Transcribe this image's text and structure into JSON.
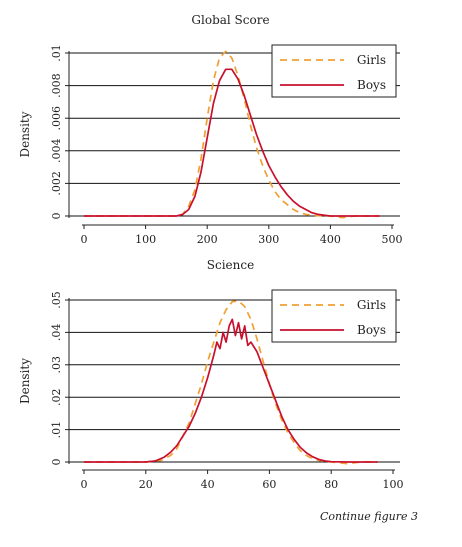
{
  "chart_data": [
    {
      "type": "line",
      "title": "Global Score",
      "xlabel": "",
      "ylabel": "Density",
      "xlim": [
        0,
        500
      ],
      "ylim": [
        0,
        0.01
      ],
      "xticks": [
        0,
        100,
        200,
        300,
        400,
        500
      ],
      "xtick_labels": [
        "0",
        "100",
        "200",
        "300",
        "400",
        "500"
      ],
      "yticks": [
        0,
        0.002,
        0.004,
        0.006,
        0.008,
        0.01
      ],
      "ytick_labels": [
        "0",
        ".002",
        ".004",
        ".006",
        ".008",
        ".01"
      ],
      "grid": "horizontal",
      "legend": "top-right",
      "series": [
        {
          "name": "Girls",
          "style": "dashed",
          "color": "#f0a033",
          "x": [
            0,
            150,
            160,
            170,
            180,
            190,
            200,
            210,
            220,
            230,
            240,
            250,
            260,
            270,
            280,
            290,
            300,
            310,
            320,
            330,
            340,
            350,
            360,
            370,
            380,
            390,
            400,
            420,
            440,
            460,
            480
          ],
          "y": [
            0,
            0,
            0.0001,
            0.0006,
            0.0016,
            0.0035,
            0.006,
            0.0083,
            0.0097,
            0.0101,
            0.0097,
            0.0086,
            0.0072,
            0.0056,
            0.0042,
            0.0031,
            0.0022,
            0.0015,
            0.001,
            0.0007,
            0.0004,
            0.0002,
            0.0001,
            5e-05,
            2e-05,
            0,
            0,
            -0.0001,
            0,
            0,
            0
          ]
        },
        {
          "name": "Boys",
          "style": "solid",
          "color": "#c8102e",
          "x": [
            0,
            150,
            160,
            170,
            180,
            190,
            200,
            210,
            220,
            230,
            240,
            250,
            260,
            270,
            280,
            290,
            300,
            310,
            320,
            330,
            340,
            350,
            360,
            370,
            380,
            390,
            400,
            420,
            440,
            460,
            480
          ],
          "y": [
            0,
            0,
            0.0001,
            0.0004,
            0.0012,
            0.0027,
            0.0048,
            0.0069,
            0.0083,
            0.009,
            0.009,
            0.0084,
            0.0074,
            0.0062,
            0.005,
            0.004,
            0.0031,
            0.0024,
            0.0018,
            0.0013,
            0.0009,
            0.0006,
            0.0004,
            0.0002,
            0.0001,
            5e-05,
            0,
            0,
            0,
            0,
            0
          ]
        }
      ]
    },
    {
      "type": "line",
      "title": "Science",
      "xlabel": "",
      "ylabel": "Density",
      "xlim": [
        0,
        100
      ],
      "ylim": [
        0,
        0.05
      ],
      "xticks": [
        0,
        20,
        40,
        60,
        80,
        100
      ],
      "xtick_labels": [
        "0",
        "20",
        "40",
        "60",
        "80",
        "100"
      ],
      "yticks": [
        0,
        0.01,
        0.02,
        0.03,
        0.04,
        0.05
      ],
      "ytick_labels": [
        "0",
        ".01",
        ".02",
        ".03",
        ".04",
        ".05"
      ],
      "grid": "horizontal",
      "legend": "top-right",
      "series": [
        {
          "name": "Girls",
          "style": "dashed",
          "color": "#f0a033",
          "x": [
            0,
            20,
            25,
            28,
            30,
            32,
            34,
            36,
            38,
            40,
            42,
            44,
            46,
            48,
            50,
            52,
            54,
            56,
            58,
            60,
            62,
            64,
            66,
            68,
            70,
            72,
            74,
            76,
            78,
            80,
            85,
            90,
            95
          ],
          "y": [
            0,
            0,
            0.0005,
            0.002,
            0.004,
            0.008,
            0.012,
            0.018,
            0.024,
            0.031,
            0.037,
            0.043,
            0.047,
            0.0495,
            0.0497,
            0.048,
            0.044,
            0.038,
            0.031,
            0.024,
            0.018,
            0.013,
            0.009,
            0.006,
            0.0035,
            0.002,
            0.001,
            0.0005,
            0.0002,
            0,
            -0.0005,
            0,
            0
          ]
        },
        {
          "name": "Boys",
          "style": "solid",
          "color": "#c8102e",
          "x": [
            0,
            20,
            23,
            26,
            28,
            30,
            32,
            34,
            36,
            38,
            40,
            42,
            43,
            44,
            45,
            46,
            47,
            48,
            49,
            50,
            51,
            52,
            53,
            54,
            56,
            58,
            60,
            62,
            64,
            66,
            68,
            70,
            72,
            74,
            76,
            78,
            80,
            85,
            90,
            95
          ],
          "y": [
            0,
            0,
            0.0003,
            0.0015,
            0.003,
            0.005,
            0.008,
            0.011,
            0.015,
            0.02,
            0.026,
            0.033,
            0.037,
            0.035,
            0.04,
            0.037,
            0.042,
            0.044,
            0.039,
            0.043,
            0.038,
            0.042,
            0.036,
            0.037,
            0.034,
            0.029,
            0.024,
            0.019,
            0.014,
            0.01,
            0.007,
            0.0045,
            0.0028,
            0.0016,
            0.0008,
            0.0003,
            0.0001,
            0,
            0,
            0
          ]
        }
      ]
    }
  ],
  "footer_note": "Continue figure 3"
}
